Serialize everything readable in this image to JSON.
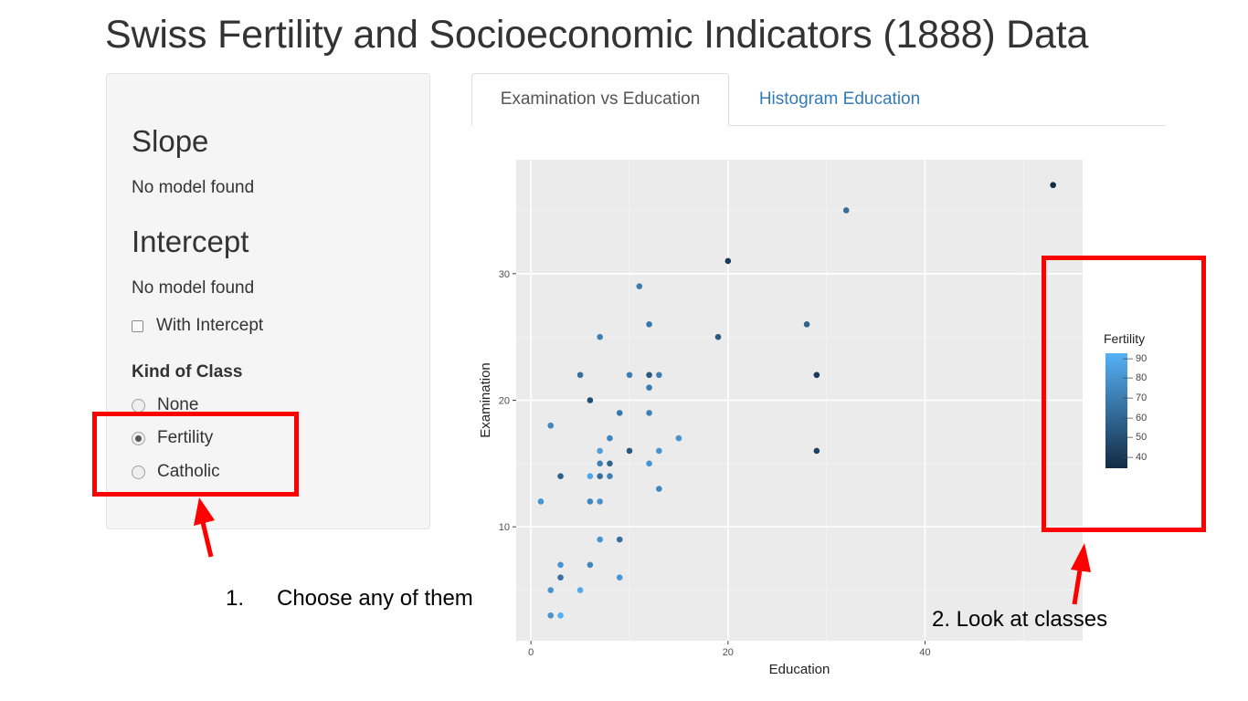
{
  "page": {
    "title": "Swiss Fertility and Socioeconomic Indicators (1888) Data"
  },
  "sidebar": {
    "slope_heading": "Slope",
    "slope_value": "No model found",
    "intercept_heading": "Intercept",
    "intercept_value": "No model found",
    "checkbox_label": "With Intercept",
    "checkbox_checked": false,
    "class_label": "Kind of Class",
    "radio_options": [
      "None",
      "Fertility",
      "Catholic"
    ],
    "radio_selected": "Fertility"
  },
  "tabs": [
    {
      "label": "Examination vs Education",
      "active": true
    },
    {
      "label": "Histogram Education",
      "active": false
    }
  ],
  "annotations": {
    "step1_number": "1.",
    "step1_text": "Choose any of them",
    "step2_text": "2. Look at classes",
    "highlight_color": "#ff0000"
  },
  "chart_data": {
    "type": "scatter",
    "xlabel": "Education",
    "ylabel": "Examination",
    "xlim": [
      -1.5,
      56
    ],
    "ylim": [
      1,
      39
    ],
    "x_ticks": [
      0,
      20,
      40
    ],
    "y_ticks": [
      10,
      20,
      30
    ],
    "grid": true,
    "panel_color": "#ebebeb",
    "legend": {
      "title": "Fertility",
      "ticks": [
        90,
        80,
        70,
        60,
        50,
        40
      ],
      "range": [
        35,
        93
      ],
      "low_color": "#132b43",
      "high_color": "#56b1f7",
      "placement": "right"
    },
    "points": [
      {
        "x": 53,
        "y": 37,
        "c": 35
      },
      {
        "x": 32,
        "y": 35,
        "c": 64
      },
      {
        "x": 20,
        "y": 31,
        "c": 42
      },
      {
        "x": 11,
        "y": 29,
        "c": 70
      },
      {
        "x": 12,
        "y": 26,
        "c": 68
      },
      {
        "x": 28,
        "y": 26,
        "c": 58
      },
      {
        "x": 7,
        "y": 25,
        "c": 72
      },
      {
        "x": 19,
        "y": 25,
        "c": 55
      },
      {
        "x": 5,
        "y": 22,
        "c": 65
      },
      {
        "x": 10,
        "y": 22,
        "c": 72
      },
      {
        "x": 12,
        "y": 22,
        "c": 55
      },
      {
        "x": 13,
        "y": 22,
        "c": 72
      },
      {
        "x": 29,
        "y": 22,
        "c": 42
      },
      {
        "x": 12,
        "y": 21,
        "c": 70
      },
      {
        "x": 6,
        "y": 20,
        "c": 50
      },
      {
        "x": 9,
        "y": 19,
        "c": 68
      },
      {
        "x": 12,
        "y": 19,
        "c": 72
      },
      {
        "x": 2,
        "y": 18,
        "c": 75
      },
      {
        "x": 8,
        "y": 17,
        "c": 75
      },
      {
        "x": 15,
        "y": 17,
        "c": 80
      },
      {
        "x": 7,
        "y": 16,
        "c": 85
      },
      {
        "x": 10,
        "y": 16,
        "c": 55
      },
      {
        "x": 13,
        "y": 16,
        "c": 80
      },
      {
        "x": 29,
        "y": 16,
        "c": 45
      },
      {
        "x": 7,
        "y": 15,
        "c": 72
      },
      {
        "x": 8,
        "y": 15,
        "c": 60
      },
      {
        "x": 12,
        "y": 15,
        "c": 80
      },
      {
        "x": 3,
        "y": 14,
        "c": 58
      },
      {
        "x": 6,
        "y": 14,
        "c": 88
      },
      {
        "x": 7,
        "y": 14,
        "c": 65
      },
      {
        "x": 8,
        "y": 14,
        "c": 72
      },
      {
        "x": 13,
        "y": 13,
        "c": 75
      },
      {
        "x": 1,
        "y": 12,
        "c": 80
      },
      {
        "x": 6,
        "y": 12,
        "c": 75
      },
      {
        "x": 7,
        "y": 12,
        "c": 80
      },
      {
        "x": 7,
        "y": 9,
        "c": 80
      },
      {
        "x": 9,
        "y": 9,
        "c": 65
      },
      {
        "x": 3,
        "y": 7,
        "c": 80
      },
      {
        "x": 6,
        "y": 7,
        "c": 75
      },
      {
        "x": 3,
        "y": 6,
        "c": 65
      },
      {
        "x": 9,
        "y": 6,
        "c": 82
      },
      {
        "x": 2,
        "y": 5,
        "c": 80
      },
      {
        "x": 5,
        "y": 5,
        "c": 90
      },
      {
        "x": 2,
        "y": 3,
        "c": 80
      },
      {
        "x": 3,
        "y": 3,
        "c": 92
      }
    ]
  }
}
